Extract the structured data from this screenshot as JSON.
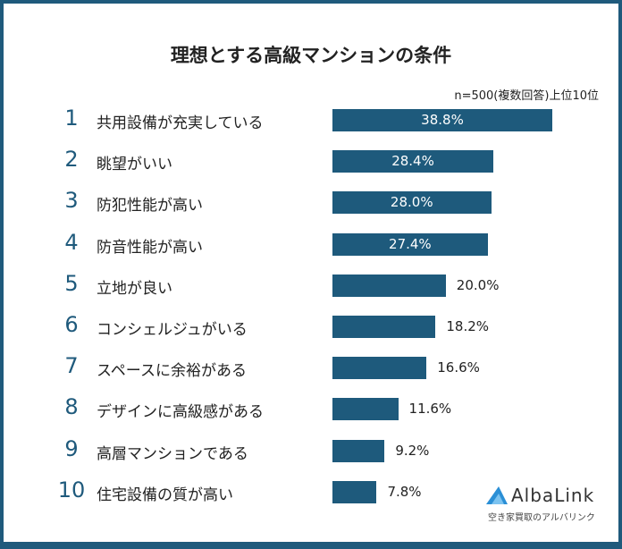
{
  "chart_data": {
    "type": "bar",
    "orientation": "horizontal",
    "title": "理想とする高級マンションの条件",
    "subtitle": "n=500(複数回答)上位10位",
    "ranks": [
      "1",
      "2",
      "3",
      "4",
      "5",
      "6",
      "7",
      "8",
      "9",
      "10"
    ],
    "categories": [
      "共用設備が充実している",
      "眺望がいい",
      "防犯性能が高い",
      "防音性能が高い",
      "立地が良い",
      "コンシェルジュがいる",
      "スペースに余裕がある",
      "デザインに高級感がある",
      "高層マンションである",
      "住宅設備の質が高い"
    ],
    "values": [
      38.8,
      28.4,
      28.0,
      27.4,
      20.0,
      18.2,
      16.6,
      11.6,
      9.2,
      7.8
    ],
    "value_labels": [
      "38.8%",
      "28.4%",
      "28.0%",
      "27.4%",
      "20.0%",
      "18.2%",
      "16.6%",
      "11.6%",
      "9.2%",
      "7.8%"
    ],
    "bar_color": "#1e5a7c",
    "grid": false
  },
  "logo": {
    "name": "AlbaLink",
    "tagline": "空き家買取のアルバリンク"
  },
  "colors": {
    "frame": "#1f5a7c"
  }
}
